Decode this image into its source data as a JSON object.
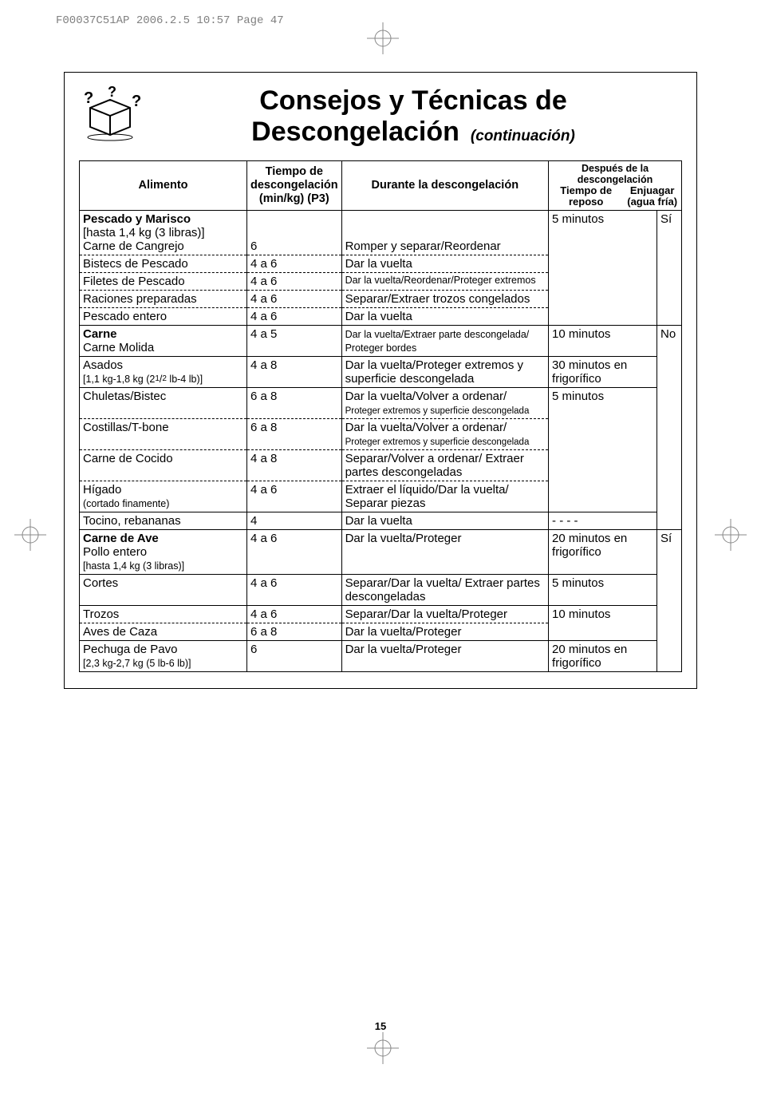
{
  "print_header": "F00037C51AP  2006.2.5  10:57  Page 47",
  "title_line1": "Consejos y Técnicas de",
  "title_line2": "Descongelación",
  "continuation": "(continuación)",
  "page_number": "15",
  "headers": {
    "food": "Alimento",
    "time": "Tiempo de descongelación (min/kg) (P3)",
    "during": "Durante la descongelación",
    "after_top": "Después de la descongelación",
    "after_rest": "Tiempo de reposo",
    "after_rinse": "Enjuagar (agua fría)"
  },
  "sections": [
    {
      "header": "Pescado y Marisco",
      "header_note": "[hasta 1,4 kg (3 libras)]",
      "rest": "5 minutos",
      "rinse": "Sí",
      "rows": [
        {
          "food": "Carne de Cangrejo",
          "time": "6",
          "during": "Romper y separar/Reordenar"
        },
        {
          "food": "Bistecs de Pescado",
          "time": "4 a 6",
          "during": "Dar la vuelta"
        },
        {
          "food": "Filetes de Pescado",
          "time": "4 a 6",
          "during": "Dar la vuelta/Reordenar/Proteger extremos",
          "small": true
        },
        {
          "food": "Raciones preparadas",
          "time": "4 a 6",
          "during": "Separar/Extraer trozos congelados"
        },
        {
          "food": "Pescado entero",
          "time": "4 a 6",
          "during": "Dar la vuelta"
        }
      ]
    },
    {
      "header": "Carne",
      "rinse": "No",
      "groups": [
        {
          "rest": "10 minutos",
          "rows": [
            {
              "food": "Carne Molida",
              "time": "4 a 5",
              "during": "Dar la vuelta/Extraer parte descongelada/ Proteger bordes",
              "small": true,
              "with_header": true
            }
          ]
        },
        {
          "rest": "30 minutos en frigorífico",
          "rows": [
            {
              "food": "Asados",
              "food2": "[1,1 kg-1,8 kg (2½ lb-4 lb)]",
              "time": "4 a 8",
              "during": "Dar la vuelta/Proteger extremos y superficie descongelada"
            }
          ]
        },
        {
          "rest": "5 minutos",
          "rows": [
            {
              "food": "Chuletas/Bistec",
              "time": "6 a 8",
              "during": "Dar la vuelta/Volver a ordenar/ Proteger extremos y superficie descongelada",
              "mix": true
            },
            {
              "food": "Costillas/T-bone",
              "time": "6 a 8",
              "during": "Dar la vuelta/Volver a ordenar/ Proteger extremos y superficie descongelada",
              "mix": true
            },
            {
              "food": "Carne de Cocido",
              "time": "4 a 8",
              "during": "Separar/Volver a ordenar/ Extraer partes descongeladas"
            },
            {
              "food": "Hígado",
              "food2": "  (cortado finamente)",
              "time": "4 a 6",
              "during": "Extraer el líquido/Dar la vuelta/ Separar piezas"
            }
          ]
        },
        {
          "rest": "- - - -",
          "rows": [
            {
              "food": "Tocino, rebananas",
              "time": "4",
              "during": "Dar la vuelta"
            }
          ]
        }
      ]
    },
    {
      "header": "Carne de Ave",
      "rinse": "Sí",
      "groups": [
        {
          "rest": "20 minutos en frigorífico",
          "rows": [
            {
              "food": "Pollo entero",
              "food2": "[hasta 1,4 kg (3 libras)]",
              "time": "4 a 6",
              "during": "Dar la vuelta/Proteger",
              "with_header": true
            }
          ]
        },
        {
          "rest": "5 minutos",
          "rows": [
            {
              "food": "Cortes",
              "time": "4 a 6",
              "during": "Separar/Dar la vuelta/ Extraer partes descongeladas"
            }
          ]
        },
        {
          "rest": "10 minutos",
          "rows": [
            {
              "food": "Trozos",
              "time": "4 a 6",
              "during": "Separar/Dar la vuelta/Proteger"
            },
            {
              "food": "Aves de Caza",
              "time": "6 a 8",
              "during": "Dar la vuelta/Proteger"
            }
          ]
        },
        {
          "rest": "20 minutos en frigorífico",
          "rows": [
            {
              "food": "Pechuga de Pavo",
              "food2": "[2,3 kg-2,7 kg (5 lb-6 lb)]",
              "time": "6",
              "during": "Dar la vuelta/Proteger"
            }
          ]
        }
      ]
    }
  ]
}
